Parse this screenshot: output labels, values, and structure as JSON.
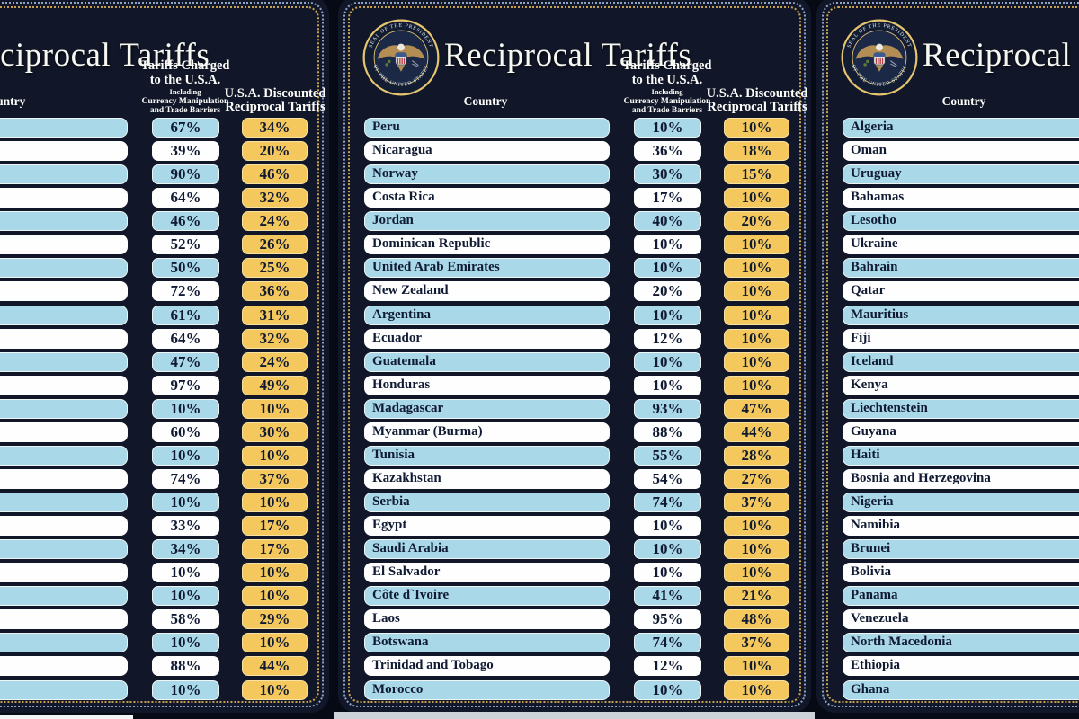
{
  "colors": {
    "board_navy": "#111729",
    "gap_navy": "#060a14",
    "row_blue": "#a9d8e8",
    "row_white": "#fefefe",
    "accent_gold": "#f4c85c",
    "text_navy": "#101b33",
    "dot_blue": "#8ca3c7",
    "dot_gold": "#c8a14d"
  },
  "board": {
    "title": "Reciprocal Tariffs",
    "seal_text_top": "SEAL OF THE PRESIDENT",
    "seal_text_bottom": "OF THE UNITED STATES",
    "header": {
      "country": "Country",
      "charged_line1": "Tariffs Charged",
      "charged_line2": "to the U.S.A.",
      "charged_sub1": "Including",
      "charged_sub2": "Currency Manipulation",
      "charged_sub3": "and Trade Barriers",
      "discounted_line1": "U.S.A. Discounted",
      "discounted_line2": "Reciprocal Tariffs"
    }
  },
  "chart_data": [
    {
      "type": "table",
      "title": "Reciprocal Tariffs (left board, country column cropped)",
      "columns": [
        "Country",
        "Tariffs Charged to the U.S.A. Including Currency Manipulation and Trade Barriers",
        "U.S.A. Discounted Reciprocal Tariffs"
      ],
      "rows": [
        {
          "country": "",
          "charged": "67%",
          "discounted": "34%"
        },
        {
          "country": "",
          "charged": "39%",
          "discounted": "20%"
        },
        {
          "country": "",
          "charged": "90%",
          "discounted": "46%"
        },
        {
          "country": "",
          "charged": "64%",
          "discounted": "32%"
        },
        {
          "country": "",
          "charged": "46%",
          "discounted": "24%"
        },
        {
          "country": "",
          "charged": "52%",
          "discounted": "26%"
        },
        {
          "country": "",
          "charged": "50%",
          "discounted": "25%"
        },
        {
          "country": "",
          "charged": "72%",
          "discounted": "36%"
        },
        {
          "country": "",
          "charged": "61%",
          "discounted": "31%"
        },
        {
          "country": "",
          "charged": "64%",
          "discounted": "32%"
        },
        {
          "country": "",
          "charged": "47%",
          "discounted": "24%"
        },
        {
          "country": "",
          "charged": "97%",
          "discounted": "49%"
        },
        {
          "country": "",
          "charged": "10%",
          "discounted": "10%"
        },
        {
          "country": "",
          "charged": "60%",
          "discounted": "30%"
        },
        {
          "country": "",
          "charged": "10%",
          "discounted": "10%"
        },
        {
          "country": "",
          "charged": "74%",
          "discounted": "37%"
        },
        {
          "country": "",
          "charged": "10%",
          "discounted": "10%"
        },
        {
          "country": "",
          "charged": "33%",
          "discounted": "17%"
        },
        {
          "country": "",
          "charged": "34%",
          "discounted": "17%"
        },
        {
          "country": "",
          "charged": "10%",
          "discounted": "10%"
        },
        {
          "country": "",
          "charged": "10%",
          "discounted": "10%"
        },
        {
          "country": "",
          "charged": "58%",
          "discounted": "29%"
        },
        {
          "country": "",
          "charged": "10%",
          "discounted": "10%"
        },
        {
          "country": "",
          "charged": "88%",
          "discounted": "44%"
        },
        {
          "country": "",
          "charged": "10%",
          "discounted": "10%"
        }
      ]
    },
    {
      "type": "table",
      "title": "Reciprocal Tariffs (center board)",
      "columns": [
        "Country",
        "Tariffs Charged to the U.S.A. Including Currency Manipulation and Trade Barriers",
        "U.S.A. Discounted Reciprocal Tariffs"
      ],
      "rows": [
        {
          "country": "Peru",
          "charged": "10%",
          "discounted": "10%"
        },
        {
          "country": "Nicaragua",
          "charged": "36%",
          "discounted": "18%"
        },
        {
          "country": "Norway",
          "charged": "30%",
          "discounted": "15%"
        },
        {
          "country": "Costa Rica",
          "charged": "17%",
          "discounted": "10%"
        },
        {
          "country": "Jordan",
          "charged": "40%",
          "discounted": "20%"
        },
        {
          "country": "Dominican Republic",
          "charged": "10%",
          "discounted": "10%"
        },
        {
          "country": "United Arab Emirates",
          "charged": "10%",
          "discounted": "10%"
        },
        {
          "country": "New Zealand",
          "charged": "20%",
          "discounted": "10%"
        },
        {
          "country": "Argentina",
          "charged": "10%",
          "discounted": "10%"
        },
        {
          "country": "Ecuador",
          "charged": "12%",
          "discounted": "10%"
        },
        {
          "country": "Guatemala",
          "charged": "10%",
          "discounted": "10%"
        },
        {
          "country": "Honduras",
          "charged": "10%",
          "discounted": "10%"
        },
        {
          "country": "Madagascar",
          "charged": "93%",
          "discounted": "47%"
        },
        {
          "country": "Myanmar (Burma)",
          "charged": "88%",
          "discounted": "44%"
        },
        {
          "country": "Tunisia",
          "charged": "55%",
          "discounted": "28%"
        },
        {
          "country": "Kazakhstan",
          "charged": "54%",
          "discounted": "27%"
        },
        {
          "country": "Serbia",
          "charged": "74%",
          "discounted": "37%"
        },
        {
          "country": "Egypt",
          "charged": "10%",
          "discounted": "10%"
        },
        {
          "country": "Saudi Arabia",
          "charged": "10%",
          "discounted": "10%"
        },
        {
          "country": "El Salvador",
          "charged": "10%",
          "discounted": "10%"
        },
        {
          "country": "Côte d`Ivoire",
          "charged": "41%",
          "discounted": "21%"
        },
        {
          "country": "Laos",
          "charged": "95%",
          "discounted": "48%"
        },
        {
          "country": "Botswana",
          "charged": "74%",
          "discounted": "37%"
        },
        {
          "country": "Trinidad and Tobago",
          "charged": "12%",
          "discounted": "10%"
        },
        {
          "country": "Morocco",
          "charged": "10%",
          "discounted": "10%"
        }
      ]
    },
    {
      "type": "table",
      "title": "Reciprocal Tariffs (right board, tariff columns cropped)",
      "columns": [
        "Country",
        "Tariffs Charged to the U.S.A. Including Currency Manipulation and Trade Barriers",
        "U.S.A. Discounted Reciprocal Tariffs"
      ],
      "rows": [
        {
          "country": "Algeria",
          "charged": "",
          "discounted": ""
        },
        {
          "country": "Oman",
          "charged": "",
          "discounted": ""
        },
        {
          "country": "Uruguay",
          "charged": "",
          "discounted": ""
        },
        {
          "country": "Bahamas",
          "charged": "",
          "discounted": ""
        },
        {
          "country": "Lesotho",
          "charged": "",
          "discounted": ""
        },
        {
          "country": "Ukraine",
          "charged": "",
          "discounted": ""
        },
        {
          "country": "Bahrain",
          "charged": "",
          "discounted": ""
        },
        {
          "country": "Qatar",
          "charged": "",
          "discounted": ""
        },
        {
          "country": "Mauritius",
          "charged": "",
          "discounted": ""
        },
        {
          "country": "Fiji",
          "charged": "",
          "discounted": ""
        },
        {
          "country": "Iceland",
          "charged": "",
          "discounted": ""
        },
        {
          "country": "Kenya",
          "charged": "",
          "discounted": ""
        },
        {
          "country": "Liechtenstein",
          "charged": "",
          "discounted": ""
        },
        {
          "country": "Guyana",
          "charged": "",
          "discounted": ""
        },
        {
          "country": "Haiti",
          "charged": "",
          "discounted": ""
        },
        {
          "country": "Bosnia and Herzegovina",
          "charged": "",
          "discounted": ""
        },
        {
          "country": "Nigeria",
          "charged": "",
          "discounted": ""
        },
        {
          "country": "Namibia",
          "charged": "",
          "discounted": ""
        },
        {
          "country": "Brunei",
          "charged": "",
          "discounted": ""
        },
        {
          "country": "Bolivia",
          "charged": "",
          "discounted": ""
        },
        {
          "country": "Panama",
          "charged": "",
          "discounted": ""
        },
        {
          "country": "Venezuela",
          "charged": "",
          "discounted": ""
        },
        {
          "country": "North Macedonia",
          "charged": "",
          "discounted": ""
        },
        {
          "country": "Ethiopia",
          "charged": "",
          "discounted": ""
        },
        {
          "country": "Ghana",
          "charged": "",
          "discounted": ""
        }
      ]
    }
  ]
}
